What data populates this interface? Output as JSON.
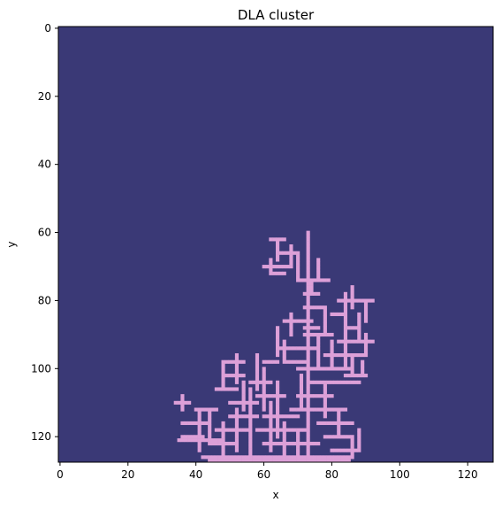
{
  "chart_data": {
    "type": "heatmap",
    "title": "DLA cluster",
    "xlabel": "x",
    "ylabel": "y",
    "xlim": [
      0,
      127
    ],
    "ylim": [
      127,
      0
    ],
    "grid_size": 128,
    "grid": false,
    "xticks": [
      0,
      20,
      40,
      60,
      80,
      100,
      120
    ],
    "yticks": [
      0,
      20,
      40,
      60,
      80,
      100,
      120
    ],
    "colors": {
      "background": "#3a3976",
      "particle": "#dda0d8"
    },
    "segments": [
      {
        "axis": "v",
        "x": 73,
        "y": [
          60,
          127
        ]
      },
      {
        "axis": "v",
        "x": 76,
        "y": [
          68,
          74
        ]
      },
      {
        "axis": "h",
        "y": 74,
        "x": [
          70,
          79
        ]
      },
      {
        "axis": "v",
        "x": 70,
        "y": [
          66,
          74
        ]
      },
      {
        "axis": "h",
        "y": 66,
        "x": [
          64,
          70
        ]
      },
      {
        "axis": "h",
        "y": 62,
        "x": [
          62,
          66
        ]
      },
      {
        "axis": "v",
        "x": 64,
        "y": [
          62,
          68
        ]
      },
      {
        "axis": "v",
        "x": 68,
        "y": [
          64,
          70
        ]
      },
      {
        "axis": "h",
        "y": 70,
        "x": [
          60,
          68
        ]
      },
      {
        "axis": "v",
        "x": 62,
        "y": [
          68,
          72
        ]
      },
      {
        "axis": "h",
        "y": 72,
        "x": [
          62,
          66
        ]
      },
      {
        "axis": "v",
        "x": 74,
        "y": [
          74,
          78
        ]
      },
      {
        "axis": "h",
        "y": 78,
        "x": [
          72,
          76
        ]
      },
      {
        "axis": "v",
        "x": 78,
        "y": [
          82,
          90
        ]
      },
      {
        "axis": "h",
        "y": 82,
        "x": [
          72,
          78
        ]
      },
      {
        "axis": "h",
        "y": 86,
        "x": [
          66,
          74
        ]
      },
      {
        "axis": "v",
        "x": 68,
        "y": [
          84,
          90
        ]
      },
      {
        "axis": "h",
        "y": 88,
        "x": [
          72,
          76
        ]
      },
      {
        "axis": "v",
        "x": 76,
        "y": [
          90,
          100
        ]
      },
      {
        "axis": "h",
        "y": 90,
        "x": [
          72,
          80
        ]
      },
      {
        "axis": "h",
        "y": 94,
        "x": [
          64,
          76
        ]
      },
      {
        "axis": "v",
        "x": 64,
        "y": [
          88,
          96
        ]
      },
      {
        "axis": "v",
        "x": 66,
        "y": [
          92,
          98
        ]
      },
      {
        "axis": "h",
        "y": 98,
        "x": [
          66,
          72
        ]
      },
      {
        "axis": "v",
        "x": 84,
        "y": [
          78,
          100
        ]
      },
      {
        "axis": "h",
        "y": 80,
        "x": [
          82,
          92
        ]
      },
      {
        "axis": "h",
        "y": 84,
        "x": [
          80,
          84
        ]
      },
      {
        "axis": "v",
        "x": 86,
        "y": [
          76,
          82
        ]
      },
      {
        "axis": "v",
        "x": 90,
        "y": [
          80,
          86
        ]
      },
      {
        "axis": "h",
        "y": 88,
        "x": [
          84,
          88
        ]
      },
      {
        "axis": "v",
        "x": 88,
        "y": [
          84,
          92
        ]
      },
      {
        "axis": "h",
        "y": 92,
        "x": [
          82,
          92
        ]
      },
      {
        "axis": "v",
        "x": 90,
        "y": [
          90,
          96
        ]
      },
      {
        "axis": "h",
        "y": 96,
        "x": [
          78,
          90
        ]
      },
      {
        "axis": "v",
        "x": 80,
        "y": [
          92,
          100
        ]
      },
      {
        "axis": "h",
        "y": 100,
        "x": [
          70,
          86
        ]
      },
      {
        "axis": "v",
        "x": 86,
        "y": [
          96,
          102
        ]
      },
      {
        "axis": "h",
        "y": 102,
        "x": [
          84,
          90
        ]
      },
      {
        "axis": "v",
        "x": 89,
        "y": [
          98,
          102
        ]
      },
      {
        "axis": "h",
        "y": 104,
        "x": [
          74,
          88
        ]
      },
      {
        "axis": "h",
        "y": 108,
        "x": [
          70,
          80
        ]
      },
      {
        "axis": "v",
        "x": 71,
        "y": [
          102,
          112
        ]
      },
      {
        "axis": "h",
        "y": 112,
        "x": [
          68,
          84
        ]
      },
      {
        "axis": "v",
        "x": 82,
        "y": [
          112,
          120
        ]
      },
      {
        "axis": "h",
        "y": 116,
        "x": [
          76,
          86
        ]
      },
      {
        "axis": "v",
        "x": 78,
        "y": [
          104,
          114
        ]
      },
      {
        "axis": "h",
        "y": 120,
        "x": [
          78,
          86
        ]
      },
      {
        "axis": "v",
        "x": 86,
        "y": [
          120,
          126
        ]
      },
      {
        "axis": "h",
        "y": 124,
        "x": [
          80,
          88
        ]
      },
      {
        "axis": "v",
        "x": 88,
        "y": [
          118,
          124
        ]
      },
      {
        "axis": "h",
        "y": 98,
        "x": [
          60,
          64
        ]
      },
      {
        "axis": "v",
        "x": 58,
        "y": [
          96,
          106
        ]
      },
      {
        "axis": "h",
        "y": 104,
        "x": [
          56,
          62
        ]
      },
      {
        "axis": "v",
        "x": 60,
        "y": [
          100,
          112
        ]
      },
      {
        "axis": "h",
        "y": 108,
        "x": [
          58,
          66
        ]
      },
      {
        "axis": "v",
        "x": 64,
        "y": [
          104,
          120
        ]
      },
      {
        "axis": "h",
        "y": 114,
        "x": [
          60,
          70
        ]
      },
      {
        "axis": "v",
        "x": 62,
        "y": [
          110,
          124
        ]
      },
      {
        "axis": "h",
        "y": 118,
        "x": [
          58,
          72
        ]
      },
      {
        "axis": "v",
        "x": 66,
        "y": [
          116,
          127
        ]
      },
      {
        "axis": "h",
        "y": 122,
        "x": [
          60,
          76
        ]
      },
      {
        "axis": "v",
        "x": 70,
        "y": [
          118,
          127
        ]
      },
      {
        "axis": "h",
        "y": 98,
        "x": [
          48,
          54
        ]
      },
      {
        "axis": "v",
        "x": 52,
        "y": [
          96,
          104
        ]
      },
      {
        "axis": "h",
        "y": 102,
        "x": [
          48,
          54
        ]
      },
      {
        "axis": "v",
        "x": 48,
        "y": [
          98,
          106
        ]
      },
      {
        "axis": "h",
        "y": 106,
        "x": [
          46,
          52
        ]
      },
      {
        "axis": "v",
        "x": 54,
        "y": [
          104,
          112
        ]
      },
      {
        "axis": "h",
        "y": 110,
        "x": [
          50,
          58
        ]
      },
      {
        "axis": "v",
        "x": 56,
        "y": [
          106,
          127
        ]
      },
      {
        "axis": "h",
        "y": 114,
        "x": [
          50,
          58
        ]
      },
      {
        "axis": "v",
        "x": 52,
        "y": [
          112,
          124
        ]
      },
      {
        "axis": "h",
        "y": 118,
        "x": [
          46,
          56
        ]
      },
      {
        "axis": "v",
        "x": 48,
        "y": [
          116,
          127
        ]
      },
      {
        "axis": "h",
        "y": 122,
        "x": [
          44,
          52
        ]
      },
      {
        "axis": "v",
        "x": 44,
        "y": [
          112,
          122
        ]
      },
      {
        "axis": "h",
        "y": 112,
        "x": [
          40,
          46
        ]
      },
      {
        "axis": "v",
        "x": 41,
        "y": [
          112,
          124
        ]
      },
      {
        "axis": "h",
        "y": 116,
        "x": [
          36,
          44
        ]
      },
      {
        "axis": "h",
        "y": 110,
        "x": [
          34,
          38
        ]
      },
      {
        "axis": "v",
        "x": 36,
        "y": [
          108,
          112
        ]
      },
      {
        "axis": "h",
        "y": 120,
        "x": [
          36,
          42
        ]
      },
      {
        "axis": "h",
        "y": 121,
        "x": [
          35,
          47
        ]
      },
      {
        "axis": "h",
        "y": 126,
        "x": [
          42,
          86
        ]
      },
      {
        "axis": "h",
        "y": 127,
        "x": [
          44,
          85
        ]
      }
    ]
  }
}
